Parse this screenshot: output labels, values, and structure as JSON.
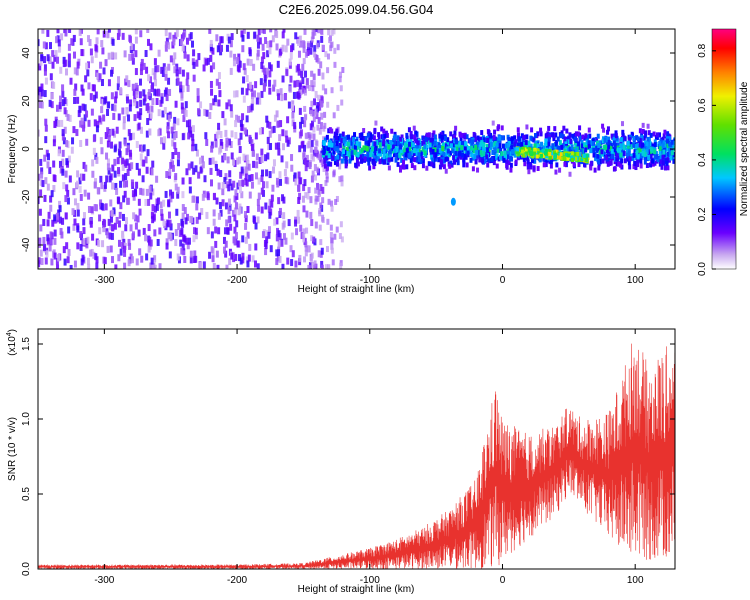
{
  "chart_data": [
    {
      "type": "heatmap",
      "title": "C2E6.2025.099.04.56.G04",
      "xlabel": "Height of straight line (km)",
      "ylabel": "Frequency (Hz)",
      "xlim": [
        -350,
        130
      ],
      "ylim": [
        -50,
        50
      ],
      "x_ticks": [
        -300,
        -200,
        -100,
        0,
        100
      ],
      "y_ticks": [
        -40,
        -20,
        0,
        20,
        40
      ],
      "colorbar": {
        "label": "Normalized spectral amplitude",
        "range": [
          0,
          0.88
        ],
        "ticks": [
          0.0,
          0.2,
          0.4,
          0.6,
          0.8
        ]
      },
      "features": [
        {
          "x_range": [
            -350,
            -135
          ],
          "y_range": [
            -50,
            50
          ],
          "amplitude": 0.15
        },
        {
          "x_range": [
            -135,
            130
          ],
          "y_center": 0,
          "y_halfwidth": 8,
          "amplitude": 0.3
        },
        {
          "x_range": [
            10,
            65
          ],
          "y_center": -1,
          "y_halfwidth": 3,
          "amplitude": 0.6
        },
        {
          "x": -37,
          "y": -22,
          "amplitude": 0.35
        }
      ]
    },
    {
      "type": "line",
      "xlabel": "Height of straight line (km)",
      "ylabel": "SNR (10 * v/v)",
      "multiplier": "(x10^4)",
      "xlim": [
        -350,
        130
      ],
      "ylim": [
        0,
        1.6
      ],
      "x_ticks": [
        -300,
        -200,
        -100,
        0,
        100
      ],
      "y_ticks": [
        0.0,
        0.5,
        1.0,
        1.5
      ],
      "color": "#e8322e",
      "envelope": {
        "x": [
          -350,
          -300,
          -250,
          -200,
          -150,
          -120,
          -100,
          -80,
          -60,
          -40,
          -20,
          -5,
          0,
          20,
          40,
          50,
          60,
          80,
          90,
          100,
          110,
          120,
          130
        ],
        "max": [
          0.03,
          0.03,
          0.03,
          0.03,
          0.04,
          0.1,
          0.14,
          0.2,
          0.28,
          0.4,
          0.6,
          1.25,
          1.0,
          0.9,
          0.97,
          1.1,
          1.0,
          1.05,
          1.3,
          1.6,
          1.35,
          1.45,
          1.55
        ],
        "min": [
          0.0,
          0.0,
          0.0,
          0.0,
          0.0,
          0.0,
          0.0,
          0.0,
          0.0,
          0.0,
          0.0,
          0.0,
          0.05,
          0.2,
          0.35,
          0.5,
          0.4,
          0.2,
          0.1,
          0.05,
          0.05,
          0.05,
          0.05
        ]
      }
    }
  ]
}
